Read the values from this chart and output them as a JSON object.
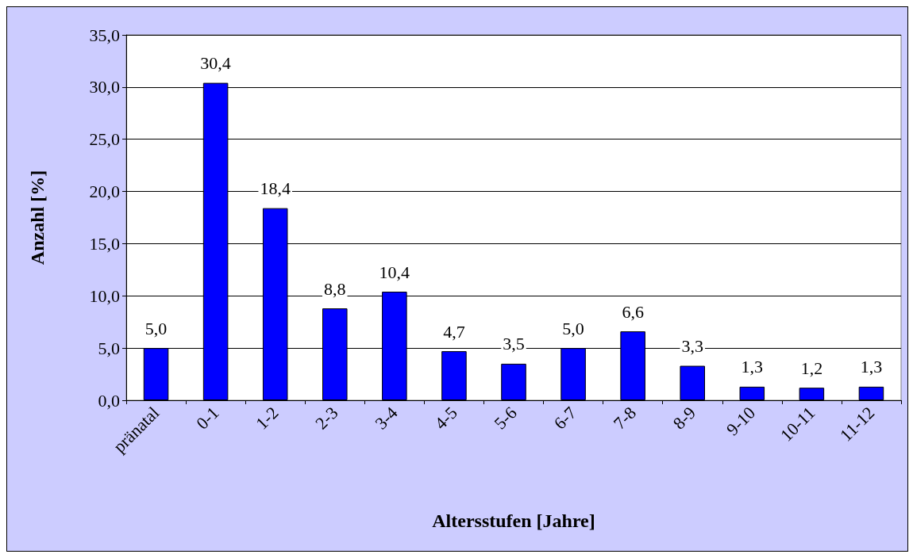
{
  "chart_data": {
    "type": "bar",
    "xlabel": "Altersstufen [Jahre]",
    "ylabel": "Anzahl [%]",
    "categories": [
      "pränatal",
      "0-1",
      "1-2",
      "2-3",
      "3-4",
      "4-5",
      "5-6",
      "6-7",
      "7-8",
      "8-9",
      "9-10",
      "10-11",
      "11-12"
    ],
    "values": [
      5.0,
      30.4,
      18.4,
      8.8,
      10.4,
      4.7,
      3.5,
      5.0,
      6.6,
      3.3,
      1.3,
      1.2,
      1.3
    ],
    "value_labels": [
      "5,0",
      "30,4",
      "18,4",
      "8,8",
      "10,4",
      "4,7",
      "3,5",
      "5,0",
      "6,6",
      "3,3",
      "1,3",
      "1,2",
      "1,3"
    ],
    "color": "#0000ff",
    "ylim": [
      0,
      35
    ],
    "yticks": [
      {
        "value": 0,
        "label": "0,0"
      },
      {
        "value": 5,
        "label": "5,0"
      },
      {
        "value": 10,
        "label": "10,0"
      },
      {
        "value": 15,
        "label": "15,0"
      },
      {
        "value": 20,
        "label": "20,0"
      },
      {
        "value": 25,
        "label": "25,0"
      },
      {
        "value": 30,
        "label": "30,0"
      },
      {
        "value": 35,
        "label": "35,0"
      }
    ],
    "grid": "y"
  }
}
